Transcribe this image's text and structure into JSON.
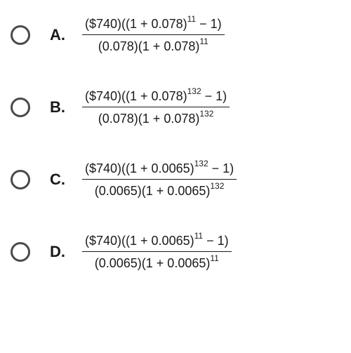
{
  "options": [
    {
      "label": "A.",
      "numerator_parts": [
        "($740)((1 + 0.078)",
        "11",
        " − 1)"
      ],
      "denominator_parts": [
        "(0.078)(1 + 0.078)",
        "11",
        ""
      ]
    },
    {
      "label": "B.",
      "numerator_parts": [
        "($740)((1 + 0.078)",
        "132",
        " − 1)"
      ],
      "denominator_parts": [
        "(0.078)(1 + 0.078)",
        "132",
        ""
      ]
    },
    {
      "label": "C.",
      "numerator_parts": [
        "($740)((1 + 0.0065)",
        "132",
        " − 1)"
      ],
      "denominator_parts": [
        "(0.0065)(1 + 0.0065)",
        "132",
        ""
      ]
    },
    {
      "label": "D.",
      "numerator_parts": [
        "($740)((1 + 0.0065)",
        "11",
        " − 1)"
      ],
      "denominator_parts": [
        "(0.0065)(1 + 0.0065)",
        "11",
        ""
      ]
    }
  ]
}
